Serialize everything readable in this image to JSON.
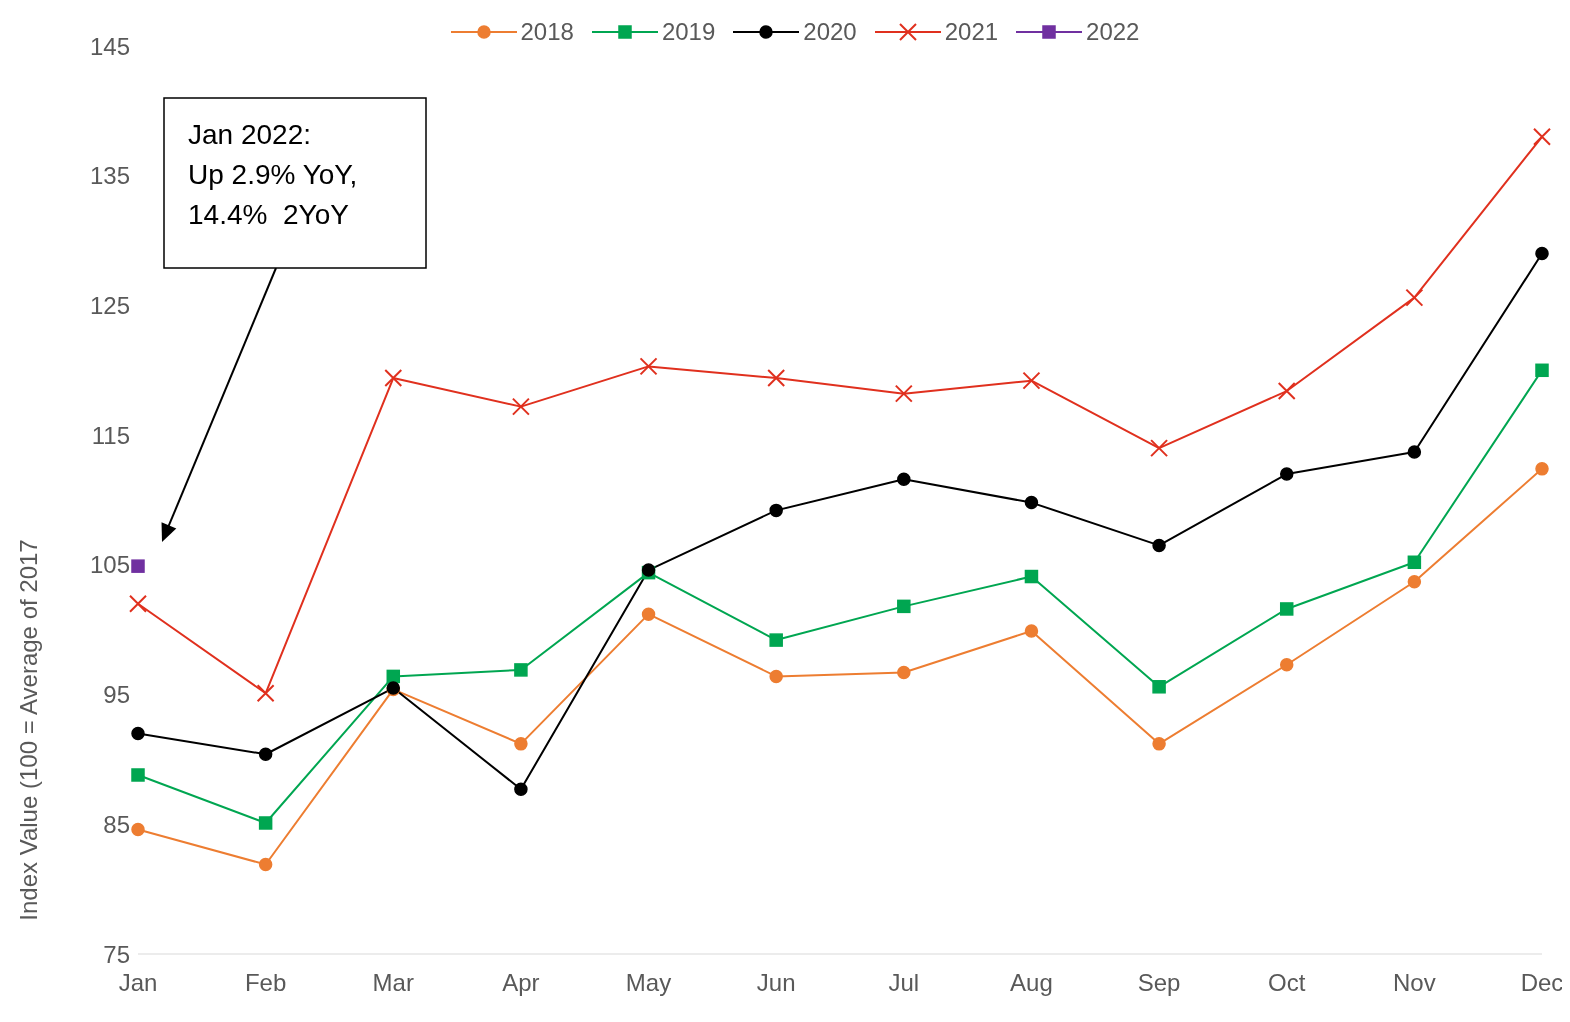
{
  "chart_data": {
    "type": "line",
    "ylabel": "Index Value (100 = Average of 2017",
    "categories": [
      "Jan",
      "Feb",
      "Mar",
      "Apr",
      "May",
      "Jun",
      "Jul",
      "Aug",
      "Sep",
      "Oct",
      "Nov",
      "Dec"
    ],
    "ylim": [
      75,
      145
    ],
    "yticks": [
      75,
      85,
      95,
      105,
      115,
      125,
      135,
      145
    ],
    "legend": "top",
    "series": [
      {
        "name": "2018",
        "color": "#ed7d31",
        "marker": "circle",
        "values": [
          84.6,
          81.9,
          95.4,
          91.2,
          101.2,
          96.4,
          96.7,
          99.9,
          91.2,
          97.3,
          103.7,
          112.4
        ]
      },
      {
        "name": "2019",
        "color": "#00a651",
        "marker": "square",
        "values": [
          88.8,
          85.1,
          96.4,
          96.9,
          104.4,
          99.2,
          101.8,
          104.1,
          95.6,
          101.6,
          105.2,
          120.0
        ]
      },
      {
        "name": "2020",
        "color": "#000000",
        "marker": "circle",
        "values": [
          92.0,
          90.4,
          95.5,
          87.7,
          104.6,
          109.2,
          111.6,
          109.8,
          106.5,
          112.0,
          113.7,
          129.0
        ]
      },
      {
        "name": "2021",
        "color": "#e0301e",
        "marker": "cross",
        "values": [
          102.0,
          95.1,
          119.4,
          117.2,
          120.3,
          119.4,
          118.2,
          119.2,
          114.0,
          118.4,
          125.6,
          138.0
        ]
      },
      {
        "name": "2022",
        "color": "#7030a0",
        "marker": "square",
        "values": [
          104.9,
          null,
          null,
          null,
          null,
          null,
          null,
          null,
          null,
          null,
          null,
          null
        ]
      }
    ],
    "annotations": [
      "Jan 2022:\nUp 2.9% YoY,\n14.4%  2YoY"
    ]
  }
}
